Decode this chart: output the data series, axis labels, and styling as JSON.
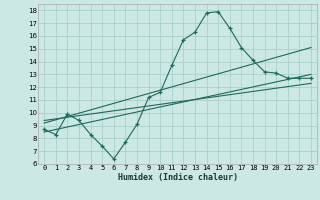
{
  "xlabel": "Humidex (Indice chaleur)",
  "bg_color": "#cce8e4",
  "grid_color": "#aacfcc",
  "line_color": "#1a6b5a",
  "xlim": [
    -0.5,
    23.5
  ],
  "ylim": [
    6,
    18.5
  ],
  "xticks": [
    0,
    1,
    2,
    3,
    4,
    5,
    6,
    7,
    8,
    9,
    10,
    11,
    12,
    13,
    14,
    15,
    16,
    17,
    18,
    19,
    20,
    21,
    22,
    23
  ],
  "yticks": [
    6,
    7,
    8,
    9,
    10,
    11,
    12,
    13,
    14,
    15,
    16,
    17,
    18
  ],
  "jagged_x": [
    0,
    1,
    2,
    3,
    4,
    5,
    6,
    7,
    8,
    9,
    10,
    11,
    12,
    13,
    14,
    15,
    16,
    17,
    18,
    19,
    20,
    21,
    22,
    23
  ],
  "jagged_y": [
    8.7,
    8.3,
    9.9,
    9.4,
    8.3,
    7.4,
    6.4,
    7.7,
    9.1,
    11.2,
    11.6,
    13.7,
    15.7,
    16.3,
    17.8,
    17.9,
    16.6,
    15.1,
    14.1,
    13.2,
    13.1,
    12.7,
    12.7,
    12.7
  ],
  "line1_x": [
    0,
    23
  ],
  "line1_y": [
    8.5,
    13.0
  ],
  "line2_x": [
    0,
    23
  ],
  "line2_y": [
    9.2,
    15.1
  ],
  "line3_x": [
    0,
    23
  ],
  "line3_y": [
    9.4,
    12.3
  ],
  "tick_fontsize": 5.0,
  "xlabel_fontsize": 6.0
}
